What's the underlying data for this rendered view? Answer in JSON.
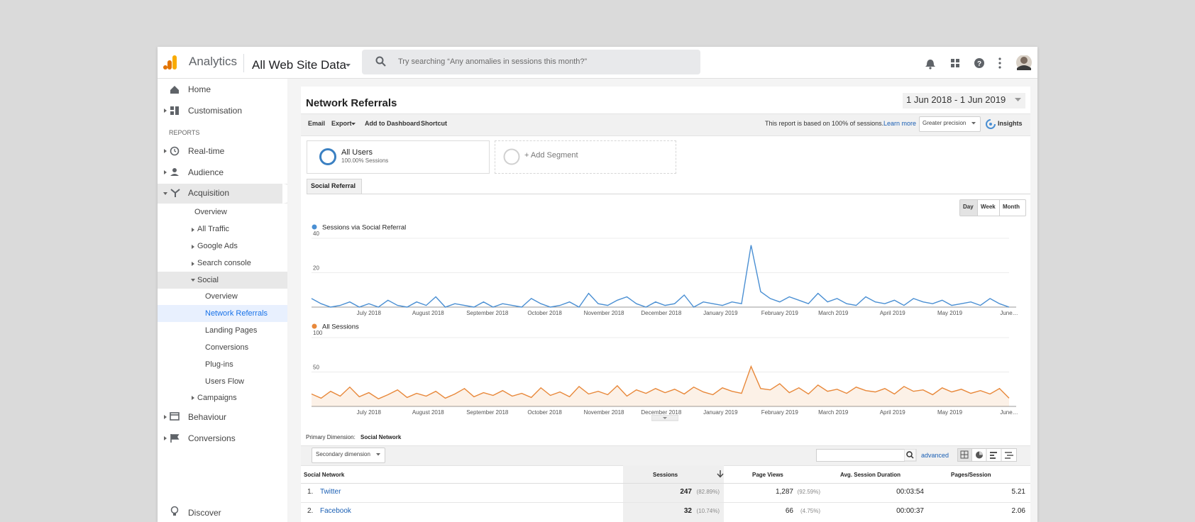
{
  "header": {
    "product": "Analytics",
    "property": "All Web Site Data",
    "search_placeholder": "Try searching “Any anomalies in sessions this month?”"
  },
  "sidebar": {
    "home": "Home",
    "customisation": "Customisation",
    "section": "REPORTS",
    "realtime": "Real-time",
    "audience": "Audience",
    "acquisition": "Acquisition",
    "acq_overview": "Overview",
    "all_traffic": "All Traffic",
    "google_ads": "Google Ads",
    "search_console": "Search console",
    "social": "Social",
    "social_items": [
      "Overview",
      "Network Referrals",
      "Landing Pages",
      "Conversions",
      "Plug-ins",
      "Users Flow"
    ],
    "campaigns": "Campaigns",
    "behaviour": "Behaviour",
    "conversions": "Conversions",
    "discover": "Discover"
  },
  "report": {
    "title": "Network Referrals",
    "date_range": "1 Jun 2018 - 1 Jun 2019",
    "toolbar": [
      "Email",
      "Export",
      "Add to Dashboard",
      "Shortcut"
    ],
    "sampling_note": "This report is based on 100% of sessions.",
    "learn_more": "Learn more",
    "precision": "Greater precision",
    "insights": "Insights",
    "segment": {
      "name": "All Users",
      "detail": "100.00% Sessions",
      "add": "+ Add Segment"
    },
    "tab": "Social Referral",
    "granularity": [
      "Day",
      "Week",
      "Month"
    ],
    "primary_dimension_label": "Primary Dimension:",
    "primary_dimension": "Social Network",
    "secondary_dimension": "Secondary dimension",
    "advanced": "advanced"
  },
  "chart_data": [
    {
      "type": "line",
      "x": [
        0,
        5,
        10,
        15,
        20,
        25,
        30,
        35,
        40,
        45,
        50,
        55,
        60,
        65,
        70,
        75,
        80,
        85,
        90,
        95,
        100,
        105,
        110,
        115,
        120,
        125,
        130,
        135,
        140,
        145,
        150,
        155,
        160,
        165,
        170,
        175,
        180,
        185,
        190,
        195,
        200,
        205,
        210,
        215,
        220,
        225,
        230,
        235,
        240,
        245,
        250,
        255,
        260,
        265,
        270,
        275,
        280,
        285,
        290,
        295,
        300,
        305,
        310,
        315,
        320,
        325,
        330,
        335,
        340,
        345,
        350,
        355,
        360,
        365
      ],
      "series": [
        {
          "name": "Sessions via Social Referral",
          "color": "#4a8fd3",
          "values": [
            5,
            2,
            0,
            1,
            3,
            0,
            2,
            0,
            4,
            1,
            0,
            3,
            1,
            6,
            0,
            2,
            1,
            0,
            3,
            0,
            2,
            1,
            0,
            5,
            2,
            0,
            1,
            3,
            0,
            8,
            2,
            1,
            4,
            6,
            2,
            0,
            3,
            1,
            2,
            7,
            0,
            3,
            2,
            1,
            3,
            2,
            36,
            9,
            5,
            3,
            6,
            4,
            2,
            8,
            3,
            5,
            2,
            1,
            6,
            3,
            2,
            4,
            1,
            5,
            3,
            2,
            4,
            1,
            2,
            3,
            1,
            5,
            2,
            0
          ]
        }
      ],
      "xlim": [
        0,
        365
      ],
      "ylim": [
        0,
        40
      ],
      "yticks": [
        20,
        40
      ],
      "grid": true,
      "xticks": [
        {
          "value": 30,
          "label": "July 2018"
        },
        {
          "value": 61,
          "label": "August 2018"
        },
        {
          "value": 92,
          "label": "September 2018"
        },
        {
          "value": 122,
          "label": "October 2018"
        },
        {
          "value": 153,
          "label": "November 2018"
        },
        {
          "value": 183,
          "label": "December 2018"
        },
        {
          "value": 214,
          "label": "January 2019"
        },
        {
          "value": 245,
          "label": "February 2019"
        },
        {
          "value": 273,
          "label": "March 2019"
        },
        {
          "value": 304,
          "label": "April 2019"
        },
        {
          "value": 334,
          "label": "May 2019"
        },
        {
          "value": 365,
          "label": "June…"
        }
      ]
    },
    {
      "type": "area",
      "x": [
        0,
        5,
        10,
        15,
        20,
        25,
        30,
        35,
        40,
        45,
        50,
        55,
        60,
        65,
        70,
        75,
        80,
        85,
        90,
        95,
        100,
        105,
        110,
        115,
        120,
        125,
        130,
        135,
        140,
        145,
        150,
        155,
        160,
        165,
        170,
        175,
        180,
        185,
        190,
        195,
        200,
        205,
        210,
        215,
        220,
        225,
        230,
        235,
        240,
        245,
        250,
        255,
        260,
        265,
        270,
        275,
        280,
        285,
        290,
        295,
        300,
        305,
        310,
        315,
        320,
        325,
        330,
        335,
        340,
        345,
        350,
        355,
        360,
        365
      ],
      "series": [
        {
          "name": "All Sessions",
          "color": "#e8883a",
          "values": [
            18,
            12,
            22,
            15,
            28,
            14,
            20,
            11,
            17,
            24,
            13,
            19,
            15,
            22,
            12,
            18,
            26,
            14,
            20,
            16,
            23,
            15,
            19,
            13,
            27,
            16,
            21,
            14,
            29,
            18,
            22,
            17,
            30,
            15,
            24,
            19,
            26,
            20,
            25,
            18,
            28,
            21,
            17,
            27,
            22,
            19,
            58,
            26,
            24,
            33,
            20,
            27,
            18,
            31,
            22,
            25,
            19,
            28,
            23,
            21,
            26,
            18,
            29,
            22,
            24,
            17,
            27,
            21,
            25,
            19,
            23,
            18,
            26,
            12
          ]
        }
      ],
      "xlim": [
        0,
        365
      ],
      "ylim": [
        0,
        100
      ],
      "yticks": [
        50,
        100
      ],
      "grid": true,
      "xticks": [
        {
          "value": 30,
          "label": "July 2018"
        },
        {
          "value": 61,
          "label": "August 2018"
        },
        {
          "value": 92,
          "label": "September 2018"
        },
        {
          "value": 122,
          "label": "October 2018"
        },
        {
          "value": 153,
          "label": "November 2018"
        },
        {
          "value": 183,
          "label": "December 2018"
        },
        {
          "value": 214,
          "label": "January 2019"
        },
        {
          "value": 245,
          "label": "February 2019"
        },
        {
          "value": 273,
          "label": "March 2019"
        },
        {
          "value": 304,
          "label": "April 2019"
        },
        {
          "value": 334,
          "label": "May 2019"
        },
        {
          "value": 365,
          "label": "June…"
        }
      ]
    }
  ],
  "table": {
    "columns": [
      "Social Network",
      "Sessions",
      "Page Views",
      "Avg. Session Duration",
      "Pages/Session"
    ],
    "rows": [
      [
        "1.",
        "Twitter",
        "247",
        "(82.89%)",
        "1,287",
        "(92.59%)",
        "00:03:54",
        "5.21"
      ],
      [
        "2.",
        "Facebook",
        "32",
        "(10.74%)",
        "66",
        "(4.75%)",
        "00:00:37",
        "2.06"
      ]
    ]
  }
}
